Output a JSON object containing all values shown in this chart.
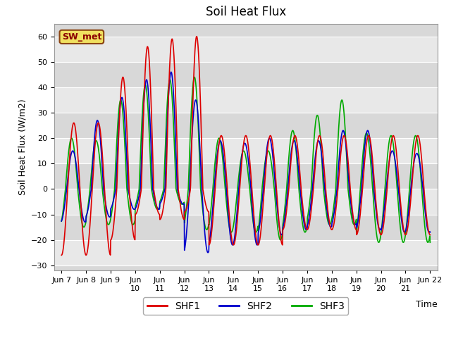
{
  "title": "Soil Heat Flux",
  "ylabel": "Soil Heat Flux (W/m2)",
  "xlabel": "Time",
  "ylim": [
    -30,
    65
  ],
  "yticks": [
    -30,
    -20,
    -10,
    0,
    10,
    20,
    30,
    40,
    50,
    60
  ],
  "legend_labels": [
    "SHF1",
    "SHF2",
    "SHF3"
  ],
  "legend_colors": [
    "#dd0000",
    "#0000cc",
    "#00aa00"
  ],
  "sw_met_label": "SW_met",
  "bg_color": "#d8d8d8",
  "plot_bg_color": "#d8d8d8",
  "line_width": 1.2,
  "title_fontsize": 12,
  "label_fontsize": 9,
  "tick_fontsize": 8,
  "xtick_labels": [
    "Jun 7",
    "Jun 8",
    "Jun 9",
    "Jun\n10",
    "Jun\n11",
    "Jun\n12",
    "Jun\n13",
    "Jun\n14",
    "Jun\n15",
    "Jun\n16",
    "Jun\n17",
    "Jun\n18",
    "Jun\n19",
    "Jun\n20",
    "Jun\n21",
    "Jun 22"
  ],
  "band_colors": [
    "#e8e8e8",
    "#d8d8d8"
  ]
}
